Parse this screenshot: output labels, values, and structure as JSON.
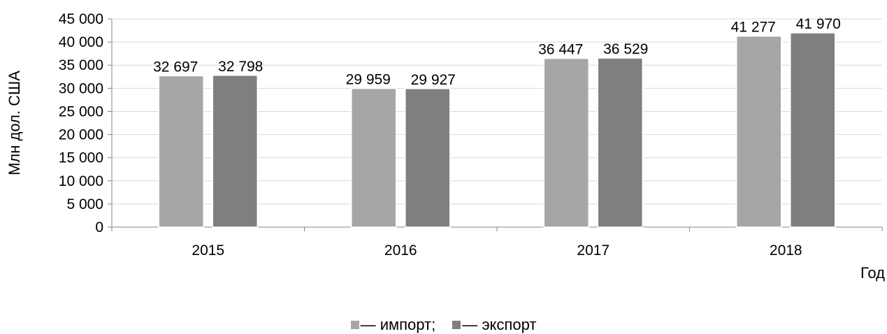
{
  "chart_data": {
    "type": "bar",
    "categories": [
      "2015",
      "2016",
      "2017",
      "2018"
    ],
    "series": [
      {
        "name": "— импорт;",
        "values": [
          32697,
          29959,
          36447,
          41277
        ],
        "color": "#a6a6a6"
      },
      {
        "name": "— экспорт",
        "values": [
          32798,
          29927,
          36529,
          41970
        ],
        "color": "#7f7f7f"
      }
    ],
    "data_labels": [
      [
        "32 697",
        "29 959",
        "36 447",
        "41 277"
      ],
      [
        "32 798",
        "29 927",
        "36 529",
        "41 970"
      ]
    ],
    "yticks": [
      0,
      5000,
      10000,
      15000,
      20000,
      25000,
      30000,
      35000,
      40000,
      45000
    ],
    "ytick_labels": [
      "0",
      "5 000",
      "10 000",
      "15 000",
      "20 000",
      "25 000",
      "30 000",
      "35 000",
      "40 000",
      "45 000"
    ],
    "ylim": [
      0,
      45000
    ],
    "ylabel": "Млн дол. США",
    "xlabel": "Год",
    "grid": true,
    "legend_position": "bottom"
  }
}
